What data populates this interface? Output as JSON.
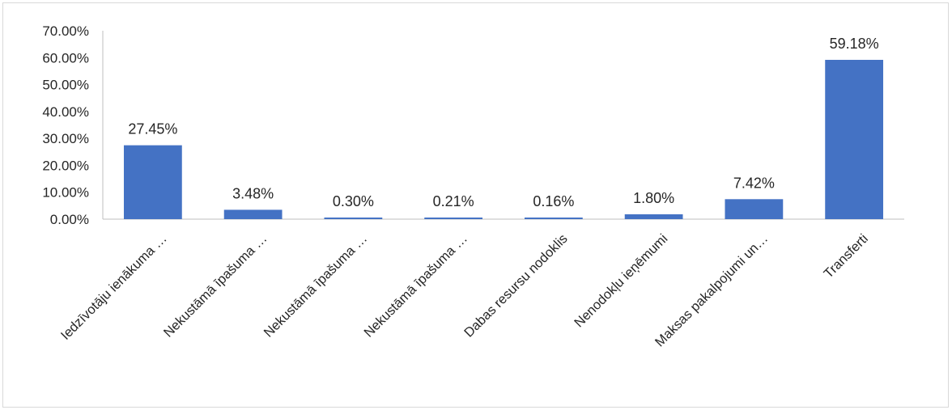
{
  "chart_data": {
    "type": "bar",
    "categories": [
      "Iedzīvotāju ienākuma …",
      "Nekustāmā īpašuma …",
      "Nekustāmā īpašuma …",
      "Nekustāmā īpašuma …",
      "Dabas resursu nodoklis",
      "Nenodokļu ieņēmumi",
      "Maksas pakalpojumi un…",
      "Transferti"
    ],
    "values": [
      27.45,
      3.48,
      0.3,
      0.21,
      0.16,
      1.8,
      7.42,
      59.18
    ],
    "data_labels": [
      "27.45%",
      "3.48%",
      "0.30%",
      "0.21%",
      "0.16%",
      "1.80%",
      "7.42%",
      "59.18%"
    ],
    "ylim": [
      0,
      70
    ],
    "y_ticks": [
      "0.00%",
      "10.00%",
      "20.00%",
      "30.00%",
      "40.00%",
      "50.00%",
      "60.00%",
      "70.00%"
    ],
    "y_tick_values": [
      0,
      10,
      20,
      30,
      40,
      50,
      60,
      70
    ],
    "grid": false,
    "legend": "none",
    "title": "",
    "xlabel": "",
    "ylabel": "",
    "bar_color": "#4472c4"
  }
}
